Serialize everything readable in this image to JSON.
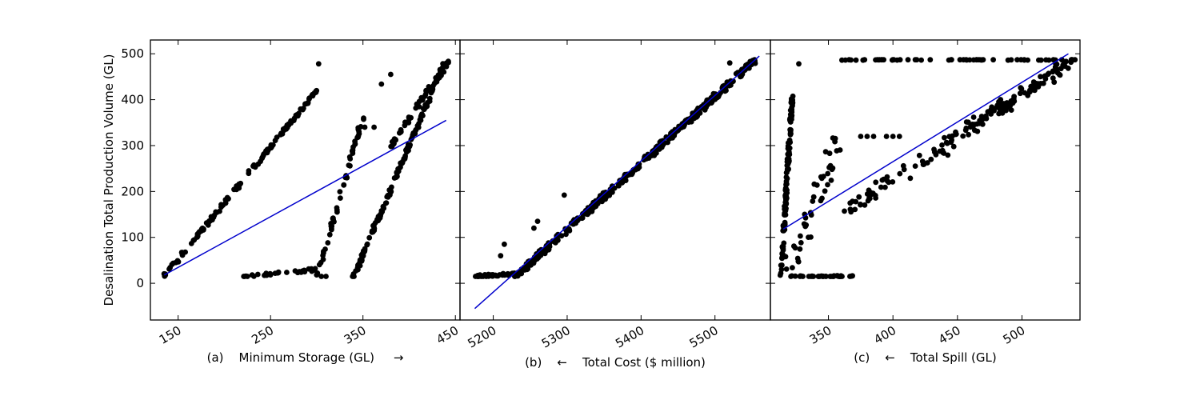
{
  "figure": {
    "ylabel": "Desalination Total Production Volume (GL)"
  },
  "chart_data": [
    {
      "type": "scatter",
      "panel": "a",
      "xlabel": "(a)    Minimum Storage (GL)     →",
      "ylabel": "Desalination Total Production Volume (GL)",
      "xlim": [
        120,
        455
      ],
      "ylim": [
        -80,
        530
      ],
      "x_ticks": [
        150,
        250,
        350,
        450
      ],
      "y_ticks": [
        0,
        100,
        200,
        300,
        400,
        500
      ],
      "x_tick_labels": [
        "150",
        "250",
        "350",
        "450"
      ],
      "y_tick_labels": [
        "0",
        "100",
        "200",
        "300",
        "400",
        "500"
      ],
      "colors": {
        "points": "#000000",
        "fit": "#0000cc"
      },
      "fit_line": [
        [
          135,
          18
        ],
        [
          440,
          355
        ]
      ],
      "x_tick_rotation": "slanted",
      "clusters": [
        {
          "x0": 135,
          "x1": 300,
          "y0": 15,
          "y1": 420,
          "n": 140,
          "noise": 8
        },
        {
          "x0": 220,
          "x1": 300,
          "y0": 15,
          "y1": 30,
          "n": 30,
          "noise": 6
        },
        {
          "x0": 300,
          "x1": 350,
          "y0": 15,
          "y1": 360,
          "n": 55,
          "noise": 10
        },
        {
          "x0": 340,
          "x1": 440,
          "y0": 15,
          "y1": 490,
          "n": 140,
          "noise": 9
        },
        {
          "x0": 380,
          "x1": 445,
          "y0": 300,
          "y1": 490,
          "n": 55,
          "noise": 10
        }
      ],
      "extra_points": [
        [
          302,
          478
        ],
        [
          370,
          434
        ],
        [
          352,
          340
        ],
        [
          362,
          340
        ],
        [
          380,
          455
        ],
        [
          305,
          15
        ],
        [
          310,
          15
        ]
      ]
    },
    {
      "type": "scatter",
      "panel": "b",
      "xlabel": "(b)    ←    Total Cost ($ million)",
      "ylabel": "",
      "xlim": [
        5155,
        5575
      ],
      "ylim": [
        -80,
        530
      ],
      "x_ticks": [
        5200,
        5300,
        5400,
        5500
      ],
      "y_ticks": [
        0,
        100,
        200,
        300,
        400,
        500
      ],
      "x_tick_labels": [
        "5200",
        "5300",
        "5400",
        "5500"
      ],
      "y_tick_labels": [],
      "colors": {
        "points": "#000000",
        "fit": "#0000cc"
      },
      "fit_line": [
        [
          5175,
          -55
        ],
        [
          5560,
          495
        ]
      ],
      "x_tick_rotation": "slanted",
      "clusters": [
        {
          "x0": 5172,
          "x1": 5230,
          "y0": 15,
          "y1": 20,
          "n": 40,
          "noise": 5
        },
        {
          "x0": 5230,
          "x1": 5555,
          "y0": 15,
          "y1": 487,
          "n": 380,
          "noise": 14
        }
      ],
      "extra_points": [
        [
          5210,
          60
        ],
        [
          5215,
          85
        ],
        [
          5255,
          120
        ],
        [
          5260,
          135
        ],
        [
          5296,
          192
        ],
        [
          5520,
          480
        ]
      ]
    },
    {
      "type": "scatter",
      "panel": "c",
      "xlabel": "(c)    ←    Total Spill (GL)",
      "ylabel": "",
      "xlim": [
        305,
        545
      ],
      "ylim": [
        -80,
        530
      ],
      "x_ticks": [
        350,
        400,
        450,
        500
      ],
      "y_ticks": [
        0,
        100,
        200,
        300,
        400,
        500
      ],
      "x_tick_labels": [
        "350",
        "400",
        "450",
        "500"
      ],
      "y_tick_labels": [],
      "colors": {
        "points": "#000000",
        "fit": "#0000cc"
      },
      "fit_line": [
        [
          315,
          118
        ],
        [
          536,
          500
        ]
      ],
      "x_tick_rotation": "slanted",
      "clusters": [
        {
          "x0": 313,
          "x1": 322,
          "y0": 15,
          "y1": 410,
          "n": 130,
          "noise": 5
        },
        {
          "x0": 320,
          "x1": 370,
          "y0": 15,
          "y1": 15,
          "n": 40,
          "noise": 3
        },
        {
          "x0": 360,
          "x1": 540,
          "y0": 487,
          "y1": 487,
          "n": 55,
          "noise": 2
        },
        {
          "x0": 360,
          "x1": 540,
          "y0": 150,
          "y1": 487,
          "n": 110,
          "noise": 35
        },
        {
          "x0": 440,
          "x1": 540,
          "y0": 300,
          "y1": 487,
          "n": 60,
          "noise": 18
        },
        {
          "x0": 320,
          "x1": 360,
          "y0": 30,
          "y1": 320,
          "n": 45,
          "noise": 40
        }
      ],
      "extra_points": [
        [
          327,
          478
        ],
        [
          375,
          320
        ],
        [
          380,
          320
        ],
        [
          385,
          320
        ],
        [
          395,
          320
        ],
        [
          400,
          320
        ],
        [
          405,
          320
        ]
      ]
    }
  ]
}
